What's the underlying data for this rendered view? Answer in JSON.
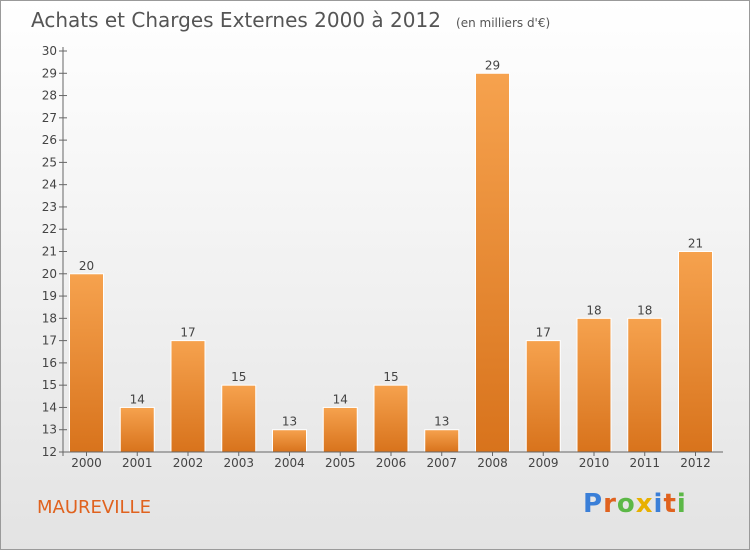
{
  "header": {
    "title": "Achats et Charges Externes 2000 à 2012",
    "unit": "(en milliers d'€)"
  },
  "commune": "MAUREVILLE",
  "logo": {
    "text": "Proxiti",
    "letter_colors": [
      "#3a7fd8",
      "#e0621e",
      "#5cb847",
      "#e8b000",
      "#3a7fd8",
      "#e0621e",
      "#5cb847"
    ]
  },
  "colors": {
    "bar_top": "#f6a24e",
    "bar_bottom": "#d8731c",
    "axis": "#666666",
    "text": "#444444",
    "accent": "#e0621e"
  },
  "chart_data": {
    "type": "bar",
    "title": "Achats et Charges Externes 2000 à 2012",
    "subtitle": "(en milliers d'€)",
    "xlabel": "",
    "ylabel": "",
    "categories": [
      "2000",
      "2001",
      "2002",
      "2003",
      "2004",
      "2005",
      "2006",
      "2007",
      "2008",
      "2009",
      "2010",
      "2011",
      "2012"
    ],
    "values": [
      20,
      14,
      17,
      15,
      13,
      14,
      15,
      13,
      29,
      17,
      18,
      18,
      21
    ],
    "ylim": [
      12,
      30
    ],
    "yticks": [
      12,
      13,
      14,
      15,
      16,
      17,
      18,
      19,
      20,
      21,
      22,
      23,
      24,
      25,
      26,
      27,
      28,
      29,
      30
    ],
    "grid": false,
    "legend": "none",
    "data_labels": true
  }
}
